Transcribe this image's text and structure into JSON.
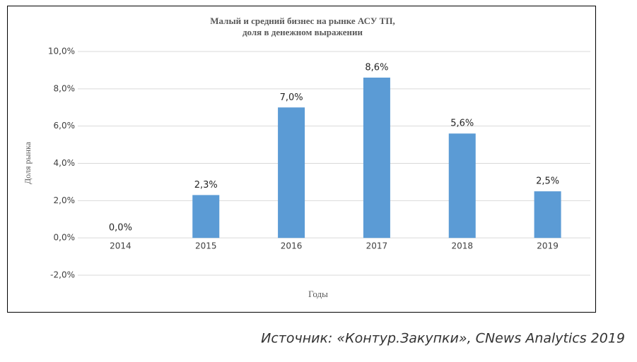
{
  "chart_data": {
    "type": "bar",
    "title": [
      "Малый и средний бизнес на рынке АСУ ТП,",
      "доля в денежном выражении"
    ],
    "ylabel": "Доля рынка",
    "xlabel": "Годы",
    "categories": [
      "2014",
      "2015",
      "2016",
      "2017",
      "2018",
      "2019"
    ],
    "values": [
      0,
      2.3,
      7.0,
      8.6,
      5.6,
      2.5
    ],
    "value_labels": [
      "0,0%",
      "2,3%",
      "7,0%",
      "8,6%",
      "5,6%",
      "2,5%"
    ],
    "color": "#5b9bd5",
    "ylim": [
      -2,
      10
    ],
    "yticks": [
      {
        "value": -2,
        "label": "-2,0%"
      },
      {
        "value": 0,
        "label": "0,0%"
      },
      {
        "value": 2,
        "label": "2,0%"
      },
      {
        "value": 4,
        "label": "4,0%"
      },
      {
        "value": 6,
        "label": "6,0%"
      },
      {
        "value": 8,
        "label": "8,0%"
      },
      {
        "value": 10,
        "label": "10,0%"
      }
    ],
    "grid": true
  },
  "source": "Источник: «Контур.Закупки», CNews Analytics 2019"
}
